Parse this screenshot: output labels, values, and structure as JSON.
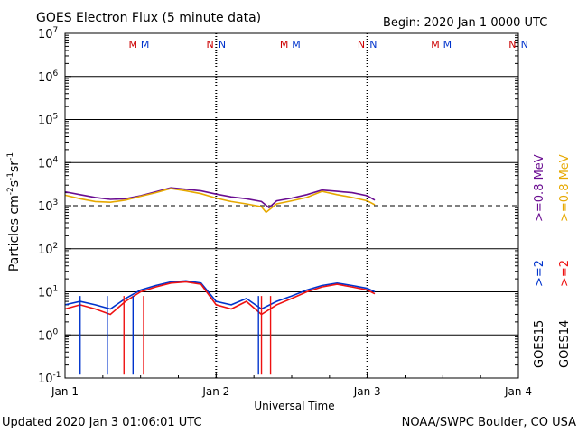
{
  "header": {
    "title": "GOES Electron Flux (5 minute data)",
    "begin": "Begin: 2020 Jan 1 0000 UTC"
  },
  "footer": {
    "updated": "Updated 2020 Jan  3 01:06:01 UTC",
    "source": "NOAA/SWPC Boulder, CO USA"
  },
  "chart_data": {
    "type": "line",
    "title": "GOES Electron Flux (5 minute data)",
    "xlabel": "Universal Time",
    "ylabel_base": "Particles cm",
    "ylabel_sup1": "-2",
    "ylabel_mid1": "s",
    "ylabel_sup2": "-1",
    "ylabel_mid2": "sr",
    "ylabel_sup3": "-1",
    "yscale": "log",
    "ylim": [
      0.1,
      10000000
    ],
    "xlim": [
      0,
      3
    ],
    "grid": "horizontal at decades",
    "threshold": 1000,
    "x_ticks": [
      {
        "x": 0,
        "label": "Jan 1"
      },
      {
        "x": 1,
        "label": "Jan 2"
      },
      {
        "x": 2,
        "label": "Jan 3"
      },
      {
        "x": 3,
        "label": "Jan 4"
      }
    ],
    "y_ticks": [
      {
        "v": 0.1,
        "base": "10",
        "exp": "-1"
      },
      {
        "v": 1,
        "base": "10",
        "exp": "0"
      },
      {
        "v": 10,
        "base": "10",
        "exp": "1"
      },
      {
        "v": 100,
        "base": "10",
        "exp": "2"
      },
      {
        "v": 1000,
        "base": "10",
        "exp": "3"
      },
      {
        "v": 10000,
        "base": "10",
        "exp": "4"
      },
      {
        "v": 100000,
        "base": "10",
        "exp": "5"
      },
      {
        "v": 1000000,
        "base": "10",
        "exp": "6"
      },
      {
        "v": 10000000,
        "base": "10",
        "exp": "7"
      }
    ],
    "markers": [
      {
        "x": 0.45,
        "text": "M",
        "color": "#cc0000"
      },
      {
        "x": 0.53,
        "text": "M",
        "color": "#0033cc"
      },
      {
        "x": 0.96,
        "text": "N",
        "color": "#cc0000"
      },
      {
        "x": 1.04,
        "text": "N",
        "color": "#0033cc"
      },
      {
        "x": 1.45,
        "text": "M",
        "color": "#cc0000"
      },
      {
        "x": 1.53,
        "text": "M",
        "color": "#0033cc"
      },
      {
        "x": 1.96,
        "text": "N",
        "color": "#cc0000"
      },
      {
        "x": 2.04,
        "text": "N",
        "color": "#0033cc"
      },
      {
        "x": 2.45,
        "text": "M",
        "color": "#cc0000"
      },
      {
        "x": 2.53,
        "text": "M",
        "color": "#0033cc"
      },
      {
        "x": 2.96,
        "text": "N",
        "color": "#cc0000"
      },
      {
        "x": 3.04,
        "text": "N",
        "color": "#0033cc"
      }
    ],
    "series": [
      {
        "name": ">=0.8 MeV",
        "satellite": "GOES15",
        "color": "#6a0d91",
        "x": [
          0,
          0.1,
          0.2,
          0.3,
          0.4,
          0.5,
          0.6,
          0.7,
          0.8,
          0.9,
          1.0,
          1.1,
          1.2,
          1.3,
          1.35,
          1.4,
          1.5,
          1.6,
          1.7,
          1.8,
          1.9,
          2.0,
          2.05
        ],
        "values": [
          2100,
          1800,
          1550,
          1400,
          1450,
          1700,
          2100,
          2600,
          2400,
          2200,
          1850,
          1600,
          1450,
          1250,
          900,
          1300,
          1500,
          1800,
          2300,
          2150,
          2000,
          1700,
          1350
        ]
      },
      {
        "name": ">=0.8 MeV",
        "satellite": "GOES14",
        "color": "#e6a800",
        "x": [
          0,
          0.1,
          0.2,
          0.3,
          0.4,
          0.5,
          0.6,
          0.7,
          0.8,
          0.9,
          1.0,
          1.1,
          1.2,
          1.3,
          1.33,
          1.4,
          1.5,
          1.6,
          1.7,
          1.8,
          1.9,
          2.0,
          2.05
        ],
        "values": [
          1750,
          1450,
          1250,
          1200,
          1350,
          1650,
          2000,
          2500,
          2200,
          1900,
          1500,
          1250,
          1100,
          950,
          700,
          1100,
          1300,
          1550,
          2150,
          1800,
          1550,
          1300,
          1050
        ]
      },
      {
        "name": ">=2 MeV",
        "satellite": "GOES15",
        "color": "#0033cc",
        "x": [
          0,
          0.1,
          0.2,
          0.3,
          0.4,
          0.5,
          0.6,
          0.7,
          0.8,
          0.9,
          1.0,
          1.1,
          1.2,
          1.3,
          1.4,
          1.5,
          1.6,
          1.7,
          1.8,
          1.9,
          2.0,
          2.05
        ],
        "values": [
          5,
          6,
          5,
          4,
          7,
          11,
          14,
          17,
          18,
          16,
          6,
          5,
          7,
          4,
          6,
          8,
          11,
          14,
          16,
          14,
          12,
          10
        ]
      },
      {
        "name": ">=2 MeV",
        "satellite": "GOES14",
        "color": "#ee1111",
        "x": [
          0,
          0.1,
          0.2,
          0.3,
          0.4,
          0.5,
          0.6,
          0.7,
          0.8,
          0.9,
          1.0,
          1.1,
          1.2,
          1.3,
          1.4,
          1.5,
          1.6,
          1.7,
          1.8,
          1.9,
          2.0,
          2.05
        ],
        "values": [
          4,
          5,
          4,
          3,
          6,
          10,
          13,
          16,
          17,
          15,
          5,
          4,
          6,
          3,
          5,
          7,
          10,
          13,
          15,
          13,
          11,
          9
        ]
      }
    ],
    "dropouts": [
      {
        "x": 0.1,
        "min": 0.12,
        "color": "#0033cc"
      },
      {
        "x": 0.28,
        "min": 0.12,
        "color": "#0033cc"
      },
      {
        "x": 0.39,
        "min": 0.12,
        "color": "#ee1111"
      },
      {
        "x": 0.45,
        "min": 0.12,
        "color": "#0033cc"
      },
      {
        "x": 0.52,
        "min": 0.12,
        "color": "#ee1111"
      },
      {
        "x": 1.28,
        "min": 0.12,
        "color": "#0033cc"
      },
      {
        "x": 1.3,
        "min": 0.12,
        "color": "#ee1111"
      },
      {
        "x": 1.36,
        "min": 0.12,
        "color": "#ee1111"
      }
    ],
    "legend_right": {
      "goes15": "GOES15",
      "goes14": "GOES14",
      "items": [
        {
          "prefix": ">=2",
          "color": "#0033cc"
        },
        {
          "prefix": ">=2",
          "color": "#ee1111"
        },
        {
          "prefix": ">=0.8 MeV",
          "color": "#6a0d91"
        },
        {
          "prefix": ">=0.8 MeV",
          "color": "#e6a800"
        }
      ]
    }
  }
}
